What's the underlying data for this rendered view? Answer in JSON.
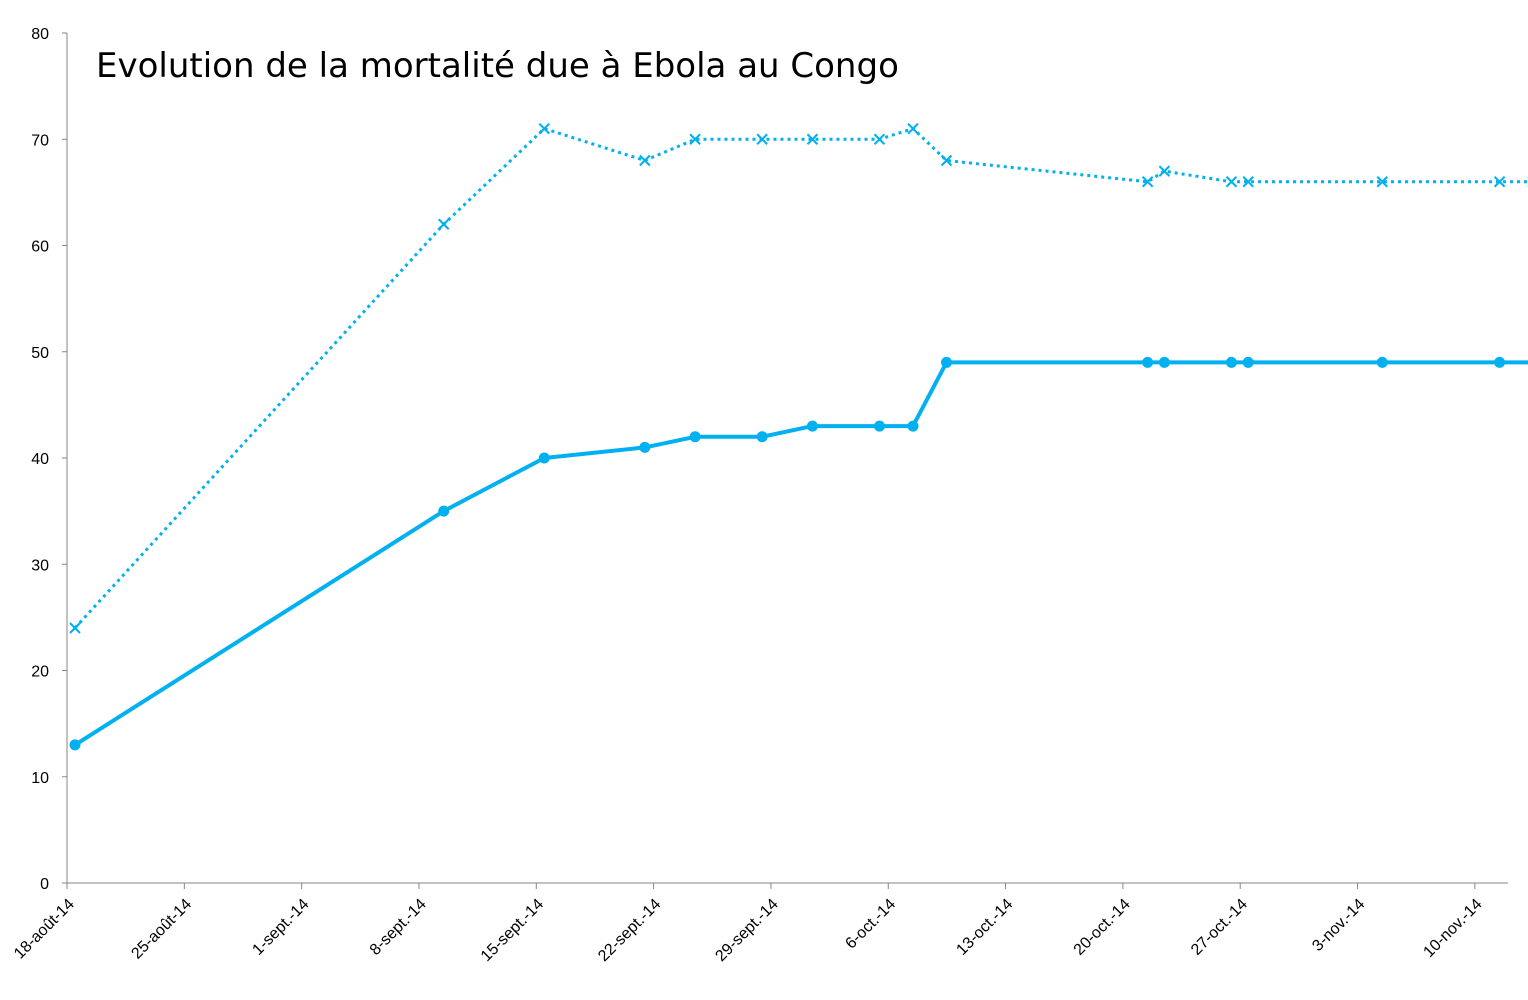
{
  "chart_data": {
    "type": "line",
    "title": "Evolution de la mortalité due à Ebola au Congo",
    "xlabel": "",
    "ylabel": "",
    "ylim": [
      0,
      80
    ],
    "yticks": [
      0,
      10,
      20,
      30,
      40,
      50,
      60,
      70,
      80
    ],
    "xlim": [
      "2014-08-18",
      "2014-11-13"
    ],
    "x_tick_dates": [
      "2014-08-18",
      "2014-08-25",
      "2014-09-01",
      "2014-09-08",
      "2014-09-15",
      "2014-09-22",
      "2014-09-29",
      "2014-10-06",
      "2014-10-13",
      "2014-10-20",
      "2014-10-27",
      "2014-11-03",
      "2014-11-10"
    ],
    "x_tick_labels": [
      "18-août-14",
      "25-août-14",
      "1-sept.-14",
      "8-sept.-14",
      "15-sept.-14",
      "22-sept.-14",
      "29-sept.-14",
      "6-oct.-14",
      "13-oct.-14",
      "20-oct.-14",
      "27-oct.-14",
      "3-nov.-14",
      "10-nov.-14"
    ],
    "x": [
      "2014-08-18",
      "2014-09-09",
      "2014-09-15",
      "2014-09-21",
      "2014-09-24",
      "2014-09-28",
      "2014-10-01",
      "2014-10-05",
      "2014-10-07",
      "2014-10-09",
      "2014-10-21",
      "2014-10-22",
      "2014-10-26",
      "2014-10-27",
      "2014-11-04",
      "2014-11-11",
      "2014-11-13"
    ],
    "series": [
      {
        "style": "dotted",
        "marker": "x",
        "color": "#00B0F0",
        "values": [
          24,
          62,
          71,
          68,
          70,
          70,
          70,
          70,
          71,
          68,
          66,
          67,
          66,
          66,
          66,
          66,
          66
        ]
      },
      {
        "style": "solid",
        "marker": "circle",
        "color": "#00B0F0",
        "values": [
          13,
          35,
          40,
          41,
          42,
          42,
          43,
          43,
          43,
          49,
          49,
          49,
          49,
          49,
          49,
          49,
          49
        ]
      }
    ],
    "legend": "none",
    "grid": false
  }
}
